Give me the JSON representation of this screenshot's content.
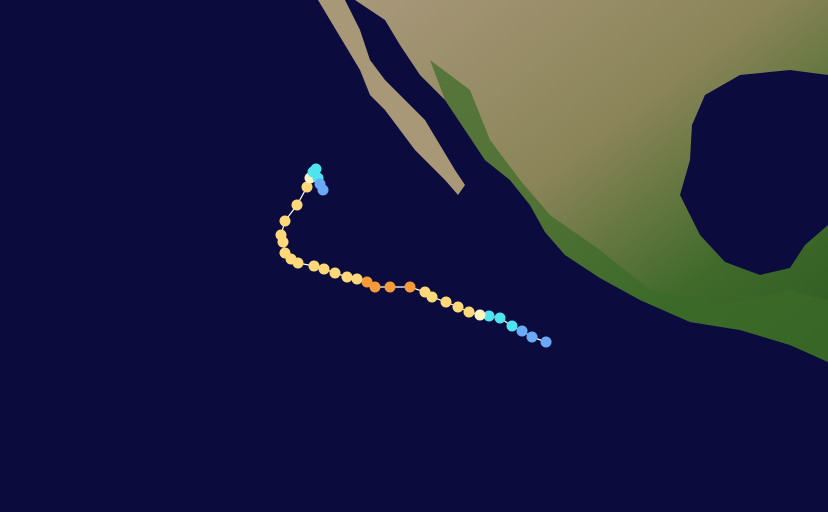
{
  "track": {
    "colors": [
      "#6aa9f5",
      "#6aa9f5",
      "#6aa9f5",
      "#4fe3f0",
      "#4fe3f0",
      "#4fe3f0",
      "#fff3c2",
      "#ffd87a",
      "#ffd87a",
      "#ffd87a",
      "#ffd87a",
      "#ffd87a",
      "#f59b37",
      "#f59b37",
      "#f59b37",
      "#f59b37",
      "#ffd87a",
      "#ffd87a",
      "#ffd87a",
      "#ffd87a",
      "#ffd87a",
      "#ffd87a",
      "#ffd87a",
      "#ffd87a",
      "#ffd87a",
      "#ffd87a",
      "#ffd87a",
      "#ffd87a",
      "#ffd87a",
      "#fff3c2",
      "#4fe3f0",
      "#4fe3f0",
      "#4fe3f0",
      "#6aa9f5",
      "#6aa9f5"
    ],
    "line_color": "#ffffff"
  }
}
